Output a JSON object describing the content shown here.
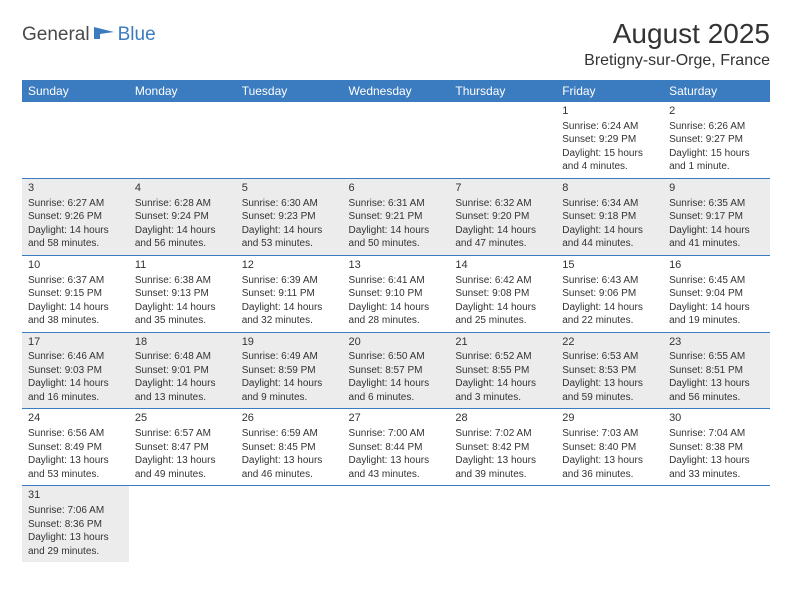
{
  "logo": {
    "part1": "General",
    "part2": "Blue"
  },
  "title": "August 2025",
  "location": "Bretigny-sur-Orge, France",
  "colors": {
    "header_bg": "#3b7bbf",
    "header_text": "#ffffff",
    "row_border": "#3b7bbf",
    "shaded_row": "#ececec",
    "text": "#333333",
    "logo_gray": "#4a4a4a",
    "logo_blue": "#3b7bbf"
  },
  "day_headers": [
    "Sunday",
    "Monday",
    "Tuesday",
    "Wednesday",
    "Thursday",
    "Friday",
    "Saturday"
  ],
  "weeks": [
    {
      "shaded": false,
      "days": [
        null,
        null,
        null,
        null,
        null,
        {
          "n": "1",
          "sr": "Sunrise: 6:24 AM",
          "ss": "Sunset: 9:29 PM",
          "dl1": "Daylight: 15 hours",
          "dl2": "and 4 minutes."
        },
        {
          "n": "2",
          "sr": "Sunrise: 6:26 AM",
          "ss": "Sunset: 9:27 PM",
          "dl1": "Daylight: 15 hours",
          "dl2": "and 1 minute."
        }
      ]
    },
    {
      "shaded": true,
      "days": [
        {
          "n": "3",
          "sr": "Sunrise: 6:27 AM",
          "ss": "Sunset: 9:26 PM",
          "dl1": "Daylight: 14 hours",
          "dl2": "and 58 minutes."
        },
        {
          "n": "4",
          "sr": "Sunrise: 6:28 AM",
          "ss": "Sunset: 9:24 PM",
          "dl1": "Daylight: 14 hours",
          "dl2": "and 56 minutes."
        },
        {
          "n": "5",
          "sr": "Sunrise: 6:30 AM",
          "ss": "Sunset: 9:23 PM",
          "dl1": "Daylight: 14 hours",
          "dl2": "and 53 minutes."
        },
        {
          "n": "6",
          "sr": "Sunrise: 6:31 AM",
          "ss": "Sunset: 9:21 PM",
          "dl1": "Daylight: 14 hours",
          "dl2": "and 50 minutes."
        },
        {
          "n": "7",
          "sr": "Sunrise: 6:32 AM",
          "ss": "Sunset: 9:20 PM",
          "dl1": "Daylight: 14 hours",
          "dl2": "and 47 minutes."
        },
        {
          "n": "8",
          "sr": "Sunrise: 6:34 AM",
          "ss": "Sunset: 9:18 PM",
          "dl1": "Daylight: 14 hours",
          "dl2": "and 44 minutes."
        },
        {
          "n": "9",
          "sr": "Sunrise: 6:35 AM",
          "ss": "Sunset: 9:17 PM",
          "dl1": "Daylight: 14 hours",
          "dl2": "and 41 minutes."
        }
      ]
    },
    {
      "shaded": false,
      "days": [
        {
          "n": "10",
          "sr": "Sunrise: 6:37 AM",
          "ss": "Sunset: 9:15 PM",
          "dl1": "Daylight: 14 hours",
          "dl2": "and 38 minutes."
        },
        {
          "n": "11",
          "sr": "Sunrise: 6:38 AM",
          "ss": "Sunset: 9:13 PM",
          "dl1": "Daylight: 14 hours",
          "dl2": "and 35 minutes."
        },
        {
          "n": "12",
          "sr": "Sunrise: 6:39 AM",
          "ss": "Sunset: 9:11 PM",
          "dl1": "Daylight: 14 hours",
          "dl2": "and 32 minutes."
        },
        {
          "n": "13",
          "sr": "Sunrise: 6:41 AM",
          "ss": "Sunset: 9:10 PM",
          "dl1": "Daylight: 14 hours",
          "dl2": "and 28 minutes."
        },
        {
          "n": "14",
          "sr": "Sunrise: 6:42 AM",
          "ss": "Sunset: 9:08 PM",
          "dl1": "Daylight: 14 hours",
          "dl2": "and 25 minutes."
        },
        {
          "n": "15",
          "sr": "Sunrise: 6:43 AM",
          "ss": "Sunset: 9:06 PM",
          "dl1": "Daylight: 14 hours",
          "dl2": "and 22 minutes."
        },
        {
          "n": "16",
          "sr": "Sunrise: 6:45 AM",
          "ss": "Sunset: 9:04 PM",
          "dl1": "Daylight: 14 hours",
          "dl2": "and 19 minutes."
        }
      ]
    },
    {
      "shaded": true,
      "days": [
        {
          "n": "17",
          "sr": "Sunrise: 6:46 AM",
          "ss": "Sunset: 9:03 PM",
          "dl1": "Daylight: 14 hours",
          "dl2": "and 16 minutes."
        },
        {
          "n": "18",
          "sr": "Sunrise: 6:48 AM",
          "ss": "Sunset: 9:01 PM",
          "dl1": "Daylight: 14 hours",
          "dl2": "and 13 minutes."
        },
        {
          "n": "19",
          "sr": "Sunrise: 6:49 AM",
          "ss": "Sunset: 8:59 PM",
          "dl1": "Daylight: 14 hours",
          "dl2": "and 9 minutes."
        },
        {
          "n": "20",
          "sr": "Sunrise: 6:50 AM",
          "ss": "Sunset: 8:57 PM",
          "dl1": "Daylight: 14 hours",
          "dl2": "and 6 minutes."
        },
        {
          "n": "21",
          "sr": "Sunrise: 6:52 AM",
          "ss": "Sunset: 8:55 PM",
          "dl1": "Daylight: 14 hours",
          "dl2": "and 3 minutes."
        },
        {
          "n": "22",
          "sr": "Sunrise: 6:53 AM",
          "ss": "Sunset: 8:53 PM",
          "dl1": "Daylight: 13 hours",
          "dl2": "and 59 minutes."
        },
        {
          "n": "23",
          "sr": "Sunrise: 6:55 AM",
          "ss": "Sunset: 8:51 PM",
          "dl1": "Daylight: 13 hours",
          "dl2": "and 56 minutes."
        }
      ]
    },
    {
      "shaded": false,
      "days": [
        {
          "n": "24",
          "sr": "Sunrise: 6:56 AM",
          "ss": "Sunset: 8:49 PM",
          "dl1": "Daylight: 13 hours",
          "dl2": "and 53 minutes."
        },
        {
          "n": "25",
          "sr": "Sunrise: 6:57 AM",
          "ss": "Sunset: 8:47 PM",
          "dl1": "Daylight: 13 hours",
          "dl2": "and 49 minutes."
        },
        {
          "n": "26",
          "sr": "Sunrise: 6:59 AM",
          "ss": "Sunset: 8:45 PM",
          "dl1": "Daylight: 13 hours",
          "dl2": "and 46 minutes."
        },
        {
          "n": "27",
          "sr": "Sunrise: 7:00 AM",
          "ss": "Sunset: 8:44 PM",
          "dl1": "Daylight: 13 hours",
          "dl2": "and 43 minutes."
        },
        {
          "n": "28",
          "sr": "Sunrise: 7:02 AM",
          "ss": "Sunset: 8:42 PM",
          "dl1": "Daylight: 13 hours",
          "dl2": "and 39 minutes."
        },
        {
          "n": "29",
          "sr": "Sunrise: 7:03 AM",
          "ss": "Sunset: 8:40 PM",
          "dl1": "Daylight: 13 hours",
          "dl2": "and 36 minutes."
        },
        {
          "n": "30",
          "sr": "Sunrise: 7:04 AM",
          "ss": "Sunset: 8:38 PM",
          "dl1": "Daylight: 13 hours",
          "dl2": "and 33 minutes."
        }
      ]
    },
    {
      "shaded": true,
      "days": [
        {
          "n": "31",
          "sr": "Sunrise: 7:06 AM",
          "ss": "Sunset: 8:36 PM",
          "dl1": "Daylight: 13 hours",
          "dl2": "and 29 minutes."
        },
        null,
        null,
        null,
        null,
        null,
        null
      ]
    }
  ]
}
